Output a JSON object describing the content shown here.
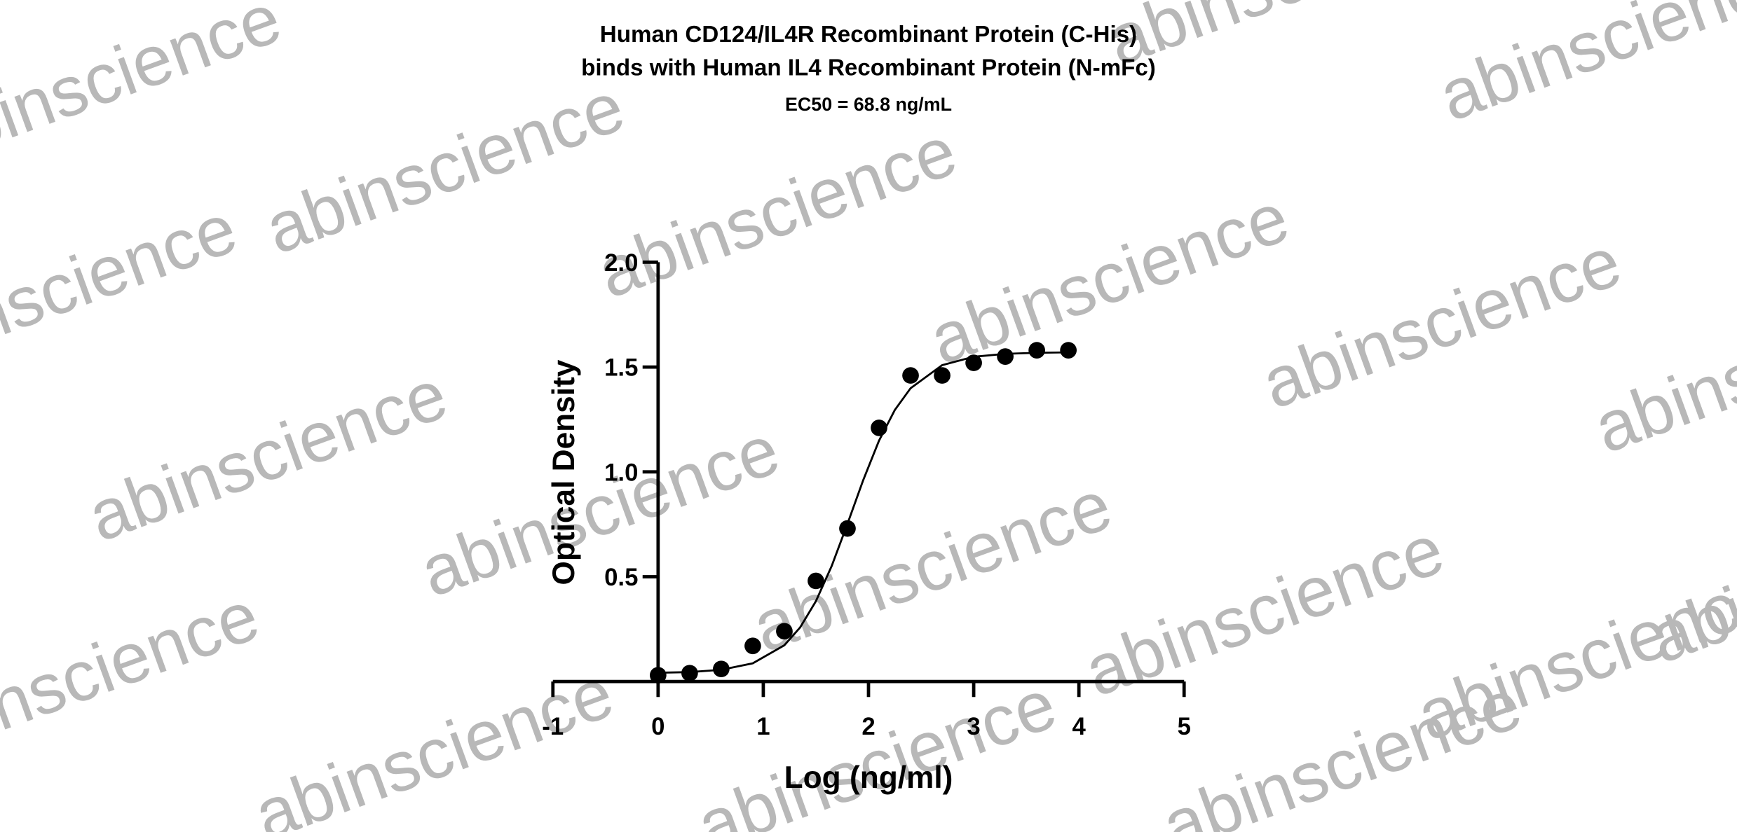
{
  "chart_data": {
    "type": "scatter",
    "title": [
      "Human CD124/IL4R Recombinant Protein (C-His)",
      "binds with Human IL4 Recombinant Protein (N-mFc)"
    ],
    "subtitle": "EC50 = 68.8 ng/mL",
    "x_label": "Log (ng/ml)",
    "y_label": "Optical Density",
    "x": [
      0,
      0.3,
      0.6,
      0.9,
      1.2,
      1.5,
      1.8,
      2.1,
      2.4,
      2.7,
      3.0,
      3.3,
      3.6,
      3.9
    ],
    "values": [
      0.03,
      0.04,
      0.06,
      0.17,
      0.24,
      0.48,
      0.73,
      1.21,
      1.46,
      1.46,
      1.52,
      1.55,
      1.58,
      1.58
    ],
    "color": "#000000",
    "fit": {
      "x": [
        0,
        0.3,
        0.6,
        0.9,
        1.2,
        1.35,
        1.5,
        1.65,
        1.8,
        1.95,
        2.1,
        2.25,
        2.4,
        2.7,
        3.0,
        3.3,
        3.6,
        3.9
      ],
      "values": [
        0.042,
        0.045,
        0.056,
        0.087,
        0.173,
        0.258,
        0.383,
        0.551,
        0.752,
        0.961,
        1.149,
        1.295,
        1.399,
        1.509,
        1.549,
        1.563,
        1.568,
        1.57
      ]
    },
    "xlim": [
      -1,
      5
    ],
    "xticks": [
      -1,
      0,
      1,
      2,
      3,
      4,
      5
    ],
    "ylim": [
      0,
      2
    ],
    "yticks": [
      0.5,
      {
        "value": 1,
        "label": "1.0"
      },
      1.5,
      {
        "value": 2,
        "label": "2.0"
      }
    ],
    "watermark": "abinscience"
  }
}
